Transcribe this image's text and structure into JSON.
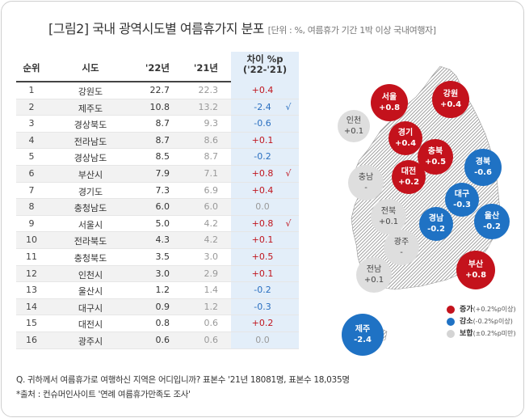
{
  "title": {
    "main": "[그림2] 국내 광역시도별 여름휴가지 분포",
    "unit": "[단위 : %, 여름휴가 기간 1박 이상 국내여행자]"
  },
  "colors": {
    "increase": "#c4121c",
    "decrease": "#1f72c4",
    "neutral": "#dedede"
  },
  "table": {
    "headers": {
      "rank": "순위",
      "region": "시도",
      "y22": "'22년",
      "y21": "'21년",
      "diff_line1": "차이 %p",
      "diff_line2": "('22-'21)"
    },
    "rows": [
      {
        "rank": "1",
        "region": "강원도",
        "y22": "22.7",
        "y21": "22.3",
        "diff": "+0.4",
        "mark": ""
      },
      {
        "rank": "2",
        "region": "제주도",
        "y22": "10.8",
        "y21": "13.2",
        "diff": "-2.4",
        "mark": "√"
      },
      {
        "rank": "3",
        "region": "경상북도",
        "y22": "8.7",
        "y21": "9.3",
        "diff": "-0.6",
        "mark": ""
      },
      {
        "rank": "4",
        "region": "전라남도",
        "y22": "8.7",
        "y21": "8.6",
        "diff": "+0.1",
        "mark": ""
      },
      {
        "rank": "5",
        "region": "경상남도",
        "y22": "8.5",
        "y21": "8.7",
        "diff": "-0.2",
        "mark": ""
      },
      {
        "rank": "6",
        "region": "부산시",
        "y22": "7.9",
        "y21": "7.1",
        "diff": "+0.8",
        "mark": "√"
      },
      {
        "rank": "7",
        "region": "경기도",
        "y22": "7.3",
        "y21": "6.9",
        "diff": "+0.4",
        "mark": ""
      },
      {
        "rank": "8",
        "region": "충청남도",
        "y22": "6.0",
        "y21": "6.0",
        "diff": "0.0",
        "mark": ""
      },
      {
        "rank": "9",
        "region": "서울시",
        "y22": "5.0",
        "y21": "4.2",
        "diff": "+0.8",
        "mark": "√"
      },
      {
        "rank": "10",
        "region": "전라북도",
        "y22": "4.3",
        "y21": "4.2",
        "diff": "+0.1",
        "mark": ""
      },
      {
        "rank": "11",
        "region": "충청북도",
        "y22": "3.5",
        "y21": "3.0",
        "diff": "+0.5",
        "mark": ""
      },
      {
        "rank": "12",
        "region": "인천시",
        "y22": "3.0",
        "y21": "2.9",
        "diff": "+0.1",
        "mark": ""
      },
      {
        "rank": "13",
        "region": "울산시",
        "y22": "1.2",
        "y21": "1.4",
        "diff": "-0.2",
        "mark": ""
      },
      {
        "rank": "14",
        "region": "대구시",
        "y22": "0.9",
        "y21": "1.2",
        "diff": "-0.3",
        "mark": ""
      },
      {
        "rank": "15",
        "region": "대전시",
        "y22": "0.8",
        "y21": "0.6",
        "diff": "+0.2",
        "mark": ""
      },
      {
        "rank": "16",
        "region": "광주시",
        "y22": "0.6",
        "y21": "0.6",
        "diff": "0.0",
        "mark": ""
      }
    ]
  },
  "map": {
    "bubbles": [
      {
        "name": "서울",
        "value": "+0.8",
        "color": "red"
      },
      {
        "name": "강원",
        "value": "+0.4",
        "color": "red"
      },
      {
        "name": "인천",
        "value": "+0.1",
        "color": "gray"
      },
      {
        "name": "경기",
        "value": "+0.4",
        "color": "red"
      },
      {
        "name": "충북",
        "value": "+0.5",
        "color": "red"
      },
      {
        "name": "경북",
        "value": "-0.6",
        "color": "blue"
      },
      {
        "name": "충남",
        "value": "-",
        "color": "gray"
      },
      {
        "name": "대전",
        "value": "+0.2",
        "color": "red"
      },
      {
        "name": "대구",
        "value": "-0.3",
        "color": "blue"
      },
      {
        "name": "전북",
        "value": "+0.1",
        "color": "gray"
      },
      {
        "name": "경남",
        "value": "-0.2",
        "color": "blue"
      },
      {
        "name": "울산",
        "value": "-0.2",
        "color": "blue"
      },
      {
        "name": "광주",
        "value": "-",
        "color": "gray"
      },
      {
        "name": "전남",
        "value": "+0.1",
        "color": "gray"
      },
      {
        "name": "부산",
        "value": "+0.8",
        "color": "red"
      },
      {
        "name": "제주",
        "value": "-2.4",
        "color": "blue"
      }
    ]
  },
  "legend": {
    "increase_label": "증가",
    "increase_sub": "(+0.2%p이상)",
    "decrease_label": "감소",
    "decrease_sub": "(-0.2%p이상)",
    "neutral_label": "보합",
    "neutral_sub": "(±0.2%p미만)"
  },
  "notes": {
    "question": "Q. 귀하께서 여름휴가로 여행하신 지역은 어디입니까? 표본수 '21년 18081명,  표본수 18,035명",
    "source": "*출처 : 컨슈머인사이트 '연례 여름휴가만족도 조사'"
  },
  "chart_data": {
    "type": "table",
    "columns": [
      "순위",
      "시도",
      "'22년",
      "'21년",
      "차이 %p ('22-'21)"
    ],
    "categories": [
      "강원도",
      "제주도",
      "경상북도",
      "전라남도",
      "경상남도",
      "부산시",
      "경기도",
      "충청남도",
      "서울시",
      "전라북도",
      "충청북도",
      "인천시",
      "울산시",
      "대구시",
      "대전시",
      "광주시"
    ],
    "series": [
      {
        "name": "'22년",
        "values": [
          22.7,
          10.8,
          8.7,
          8.7,
          8.5,
          7.9,
          7.3,
          6.0,
          5.0,
          4.3,
          3.5,
          3.0,
          1.2,
          0.9,
          0.8,
          0.6
        ]
      },
      {
        "name": "'21년",
        "values": [
          22.3,
          13.2,
          9.3,
          8.6,
          8.7,
          7.1,
          6.9,
          6.0,
          4.2,
          4.2,
          3.0,
          2.9,
          1.4,
          1.2,
          0.6,
          0.6
        ]
      },
      {
        "name": "차이 %p",
        "values": [
          0.4,
          -2.4,
          -0.6,
          0.1,
          -0.2,
          0.8,
          0.4,
          0.0,
          0.8,
          0.1,
          0.5,
          0.1,
          -0.2,
          -0.3,
          0.2,
          0.0
        ]
      }
    ]
  }
}
